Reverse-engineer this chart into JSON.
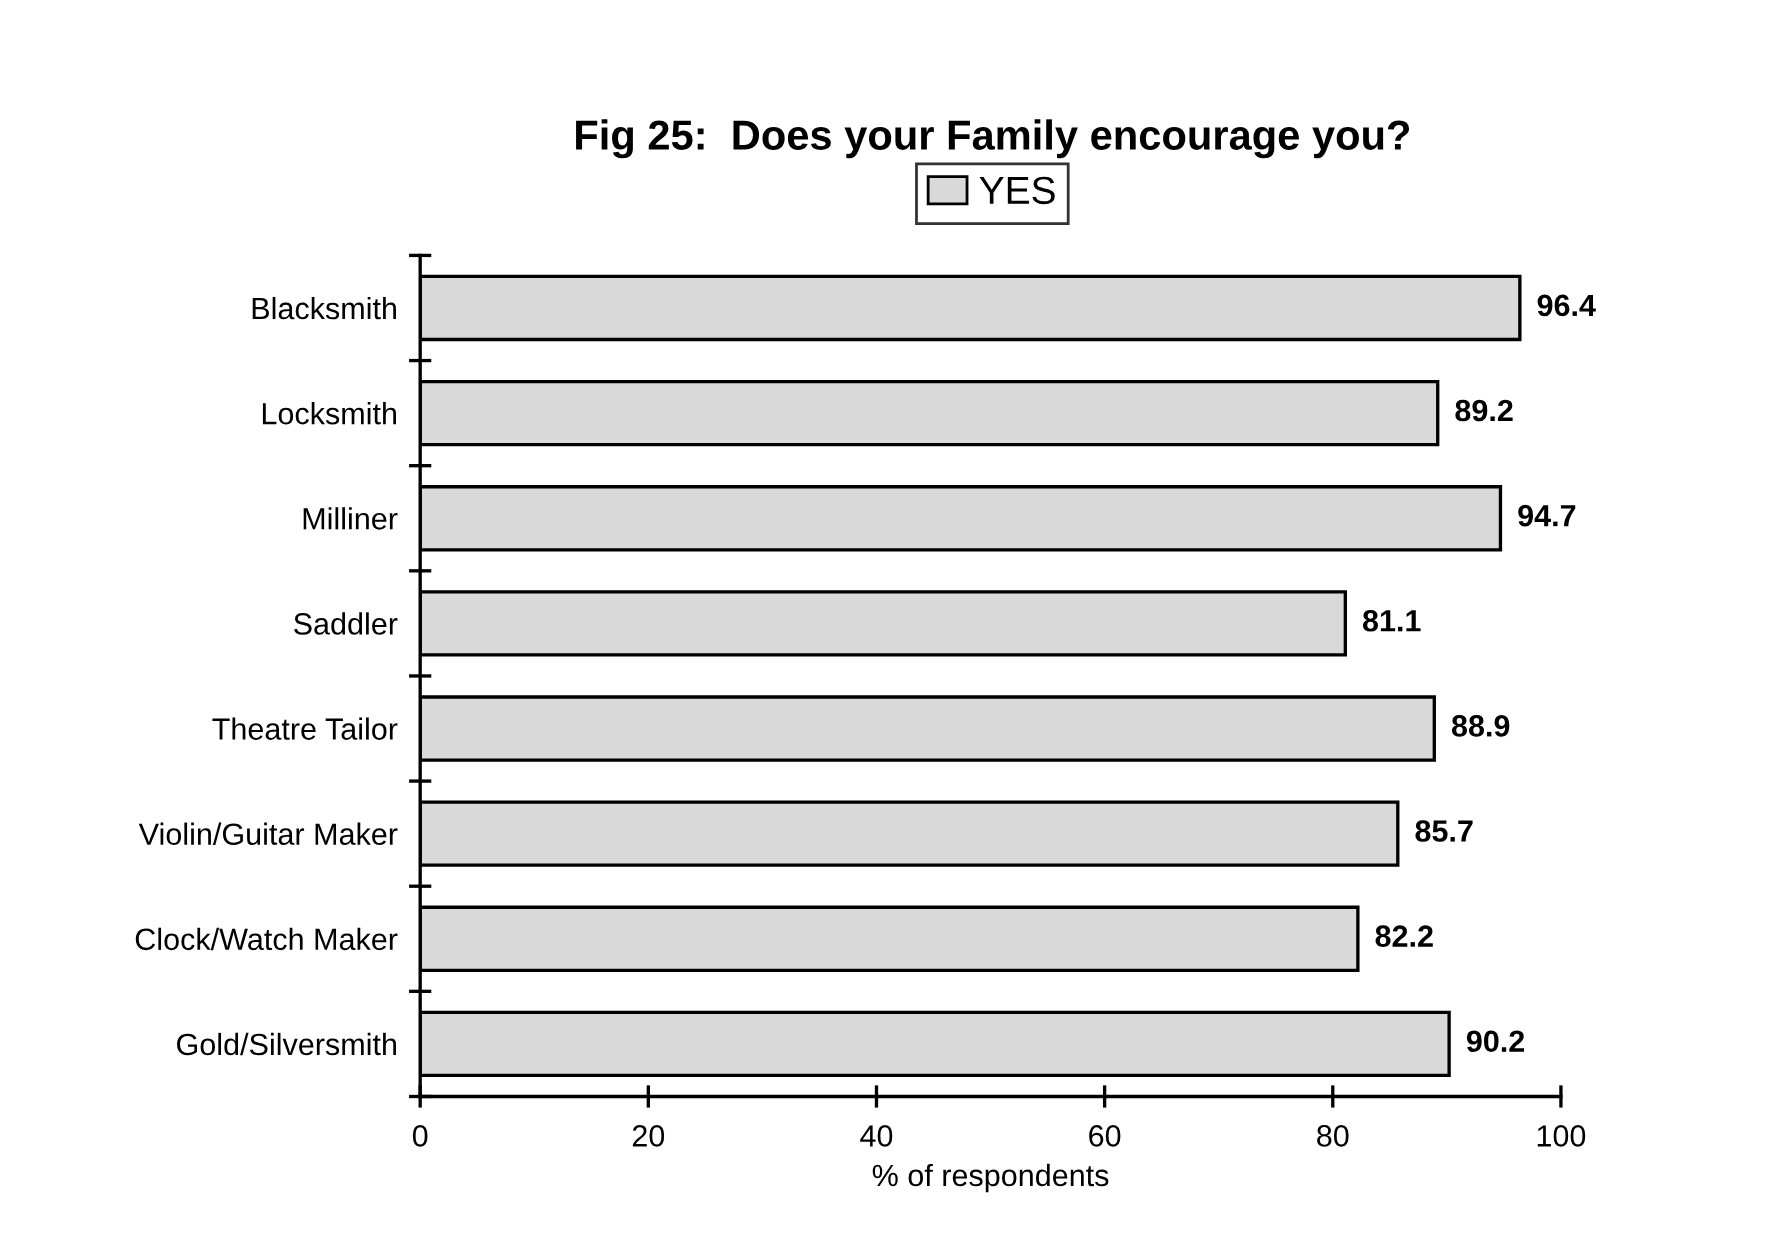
{
  "chart_data": {
    "type": "bar",
    "orientation": "horizontal",
    "title": "Fig 25:  Does your Family encourage you?",
    "xlabel": "% of respondents",
    "categories": [
      "Blacksmith",
      "Locksmith",
      "Milliner",
      "Saddler",
      "Theatre Tailor",
      "Violin/Guitar Maker",
      "Clock/Watch Maker",
      "Gold/Silversmith"
    ],
    "series": [
      {
        "name": "YES",
        "color": "#d9d9d9",
        "values": [
          96.4,
          89.2,
          94.7,
          81.1,
          88.9,
          85.7,
          82.2,
          90.2
        ]
      }
    ],
    "xlim": [
      0,
      100
    ],
    "xticks": [
      0,
      20,
      40,
      60,
      80,
      100
    ],
    "grid": false,
    "legend": "top",
    "data_labels": true
  }
}
